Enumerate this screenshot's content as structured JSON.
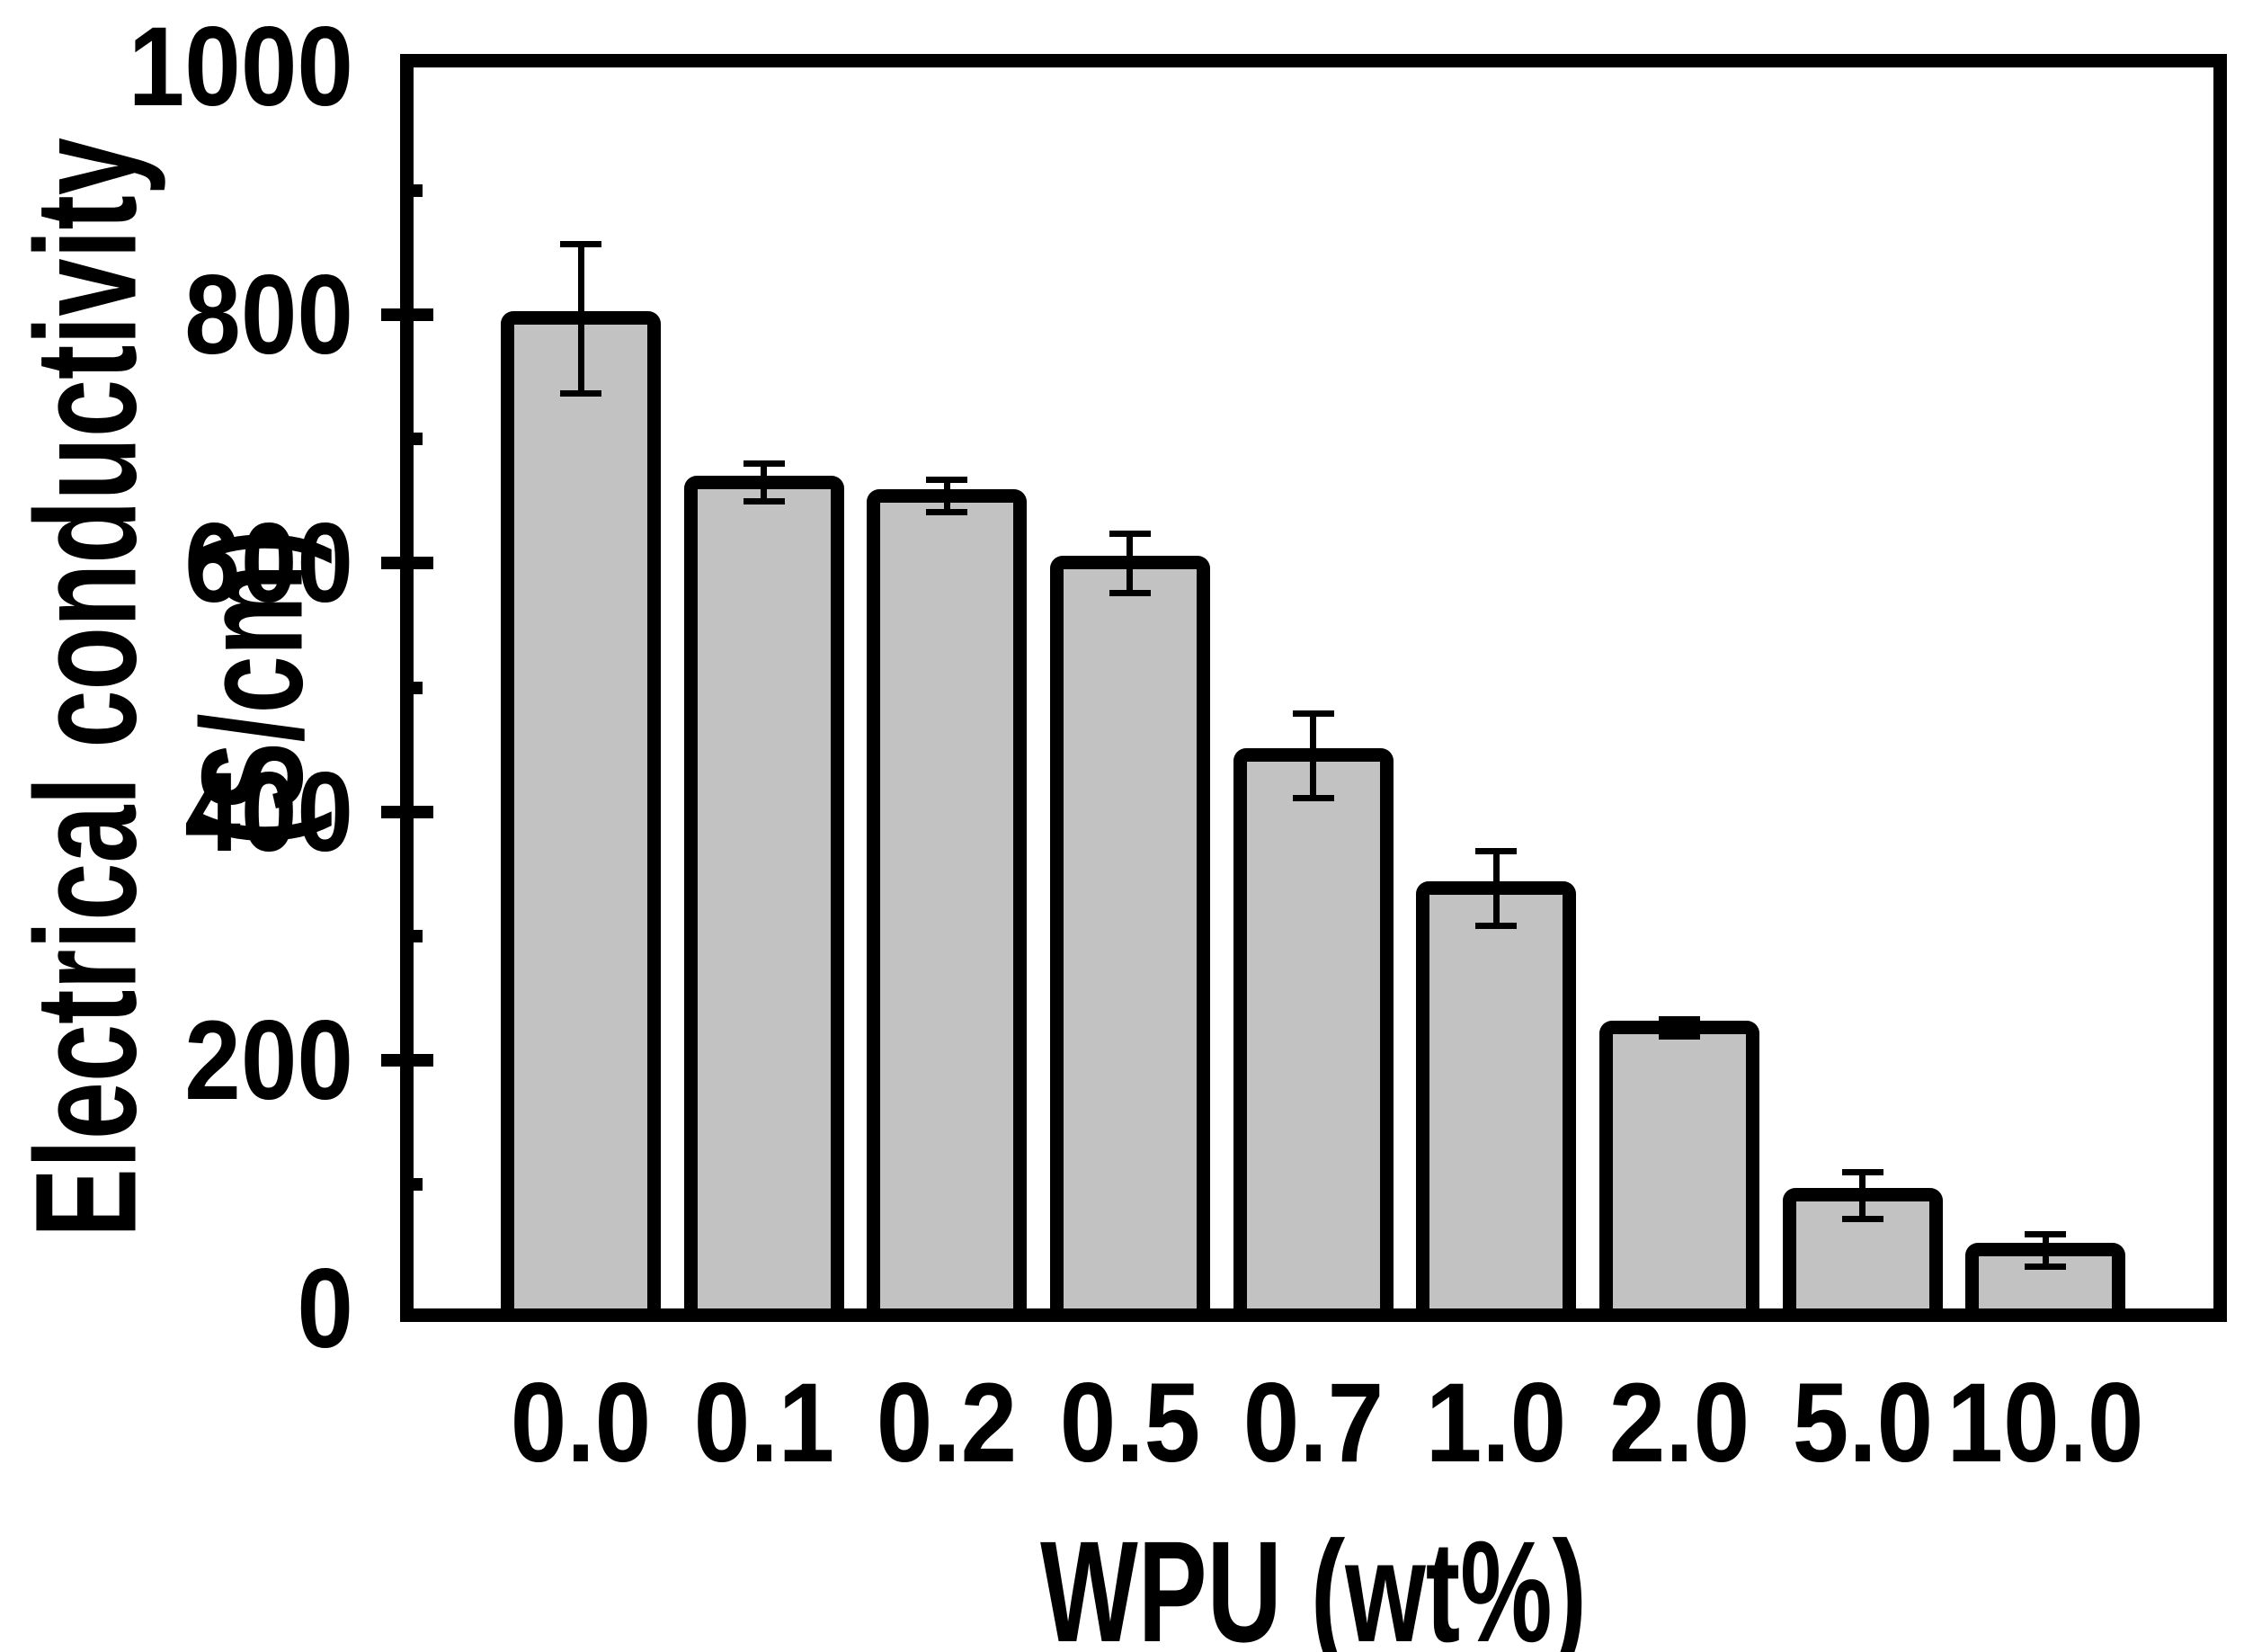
{
  "figure": {
    "background": "#ffffff",
    "frame_color": "#000000"
  },
  "chart_data": {
    "type": "bar",
    "title": "",
    "xlabel": "WPU (wt%)",
    "ylabel": "Electrical conductivity (S/cm)",
    "categories": [
      "0.0",
      "0.1",
      "0.2",
      "0.5",
      "0.7",
      "1.0",
      "2.0",
      "5.0",
      "10.0"
    ],
    "values": [
      797,
      665,
      654,
      600,
      445,
      338,
      226,
      91,
      47
    ],
    "error_bars": [
      60,
      15,
      13,
      24,
      34,
      30,
      7,
      19,
      13
    ],
    "ylim": [
      0,
      1000
    ],
    "yticks_major": [
      0,
      200,
      400,
      600,
      800,
      1000
    ],
    "yticks_minor": [
      100,
      300,
      500,
      700,
      900
    ],
    "grid": false,
    "legend": null,
    "bar_style": {
      "fill": "#c2c2c2",
      "edge": "#000000"
    }
  }
}
